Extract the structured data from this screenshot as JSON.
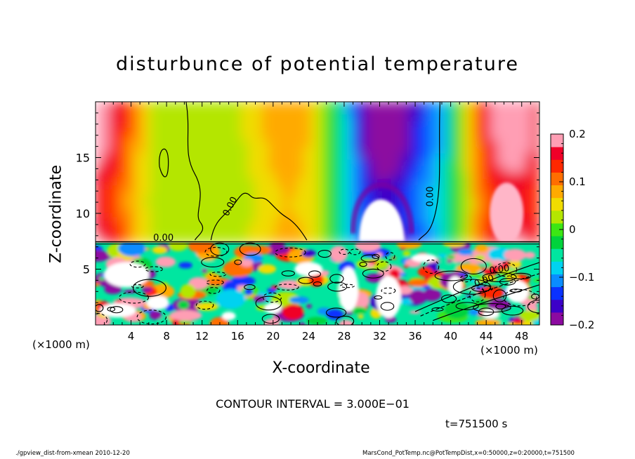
{
  "chart_data": {
    "type": "heatmap",
    "title": "disturbunce of potential temperature",
    "xlabel": "X-coordinate",
    "ylabel": "Z-coordinate",
    "x_unit_left": "(×1000 m)",
    "x_unit_right": "(×1000 m)",
    "xlim": [
      0,
      50
    ],
    "ylim": [
      0,
      20
    ],
    "x_ticks": [
      4,
      8,
      12,
      16,
      20,
      24,
      28,
      32,
      36,
      40,
      44,
      48
    ],
    "x_tick_labels": [
      "4",
      "8",
      "12",
      "16",
      "20",
      "24",
      "28",
      "32",
      "36",
      "40",
      "44",
      "48"
    ],
    "y_ticks": [
      5,
      10,
      15
    ],
    "y_tick_labels": [
      "5",
      "10",
      "15"
    ],
    "colorbar": {
      "range": [
        -0.2,
        0.2
      ],
      "ticks": [
        0.2,
        0.1,
        0,
        -0.1,
        -0.2
      ],
      "tick_labels": [
        "0.2",
        "0.1",
        "0",
        "−0.1",
        "−0.2"
      ],
      "colors": [
        "#8c0aa0",
        "#3c00c8",
        "#0a32ff",
        "#0a8cff",
        "#00d2f0",
        "#00e6a0",
        "#00d23c",
        "#3ce614",
        "#b4e600",
        "#f0dc00",
        "#ffaa00",
        "#ff6e00",
        "#ff2800",
        "#f00028",
        "#ff9eb4"
      ]
    },
    "contour_labels": [
      "0.00",
      "0.00",
      "0.00",
      "0.00",
      "0.00"
    ],
    "contour_interval_text": "CONTOUR INTERVAL = 3.000E−01",
    "time_text": "t=751500 s",
    "footer_left": "./gpview_dist-from-xmean  2010-12-20",
    "footer_right": "MarsCond_PotTemp.nc@PotTempDist,x=0:50000,z=0:20000,t=751500"
  }
}
